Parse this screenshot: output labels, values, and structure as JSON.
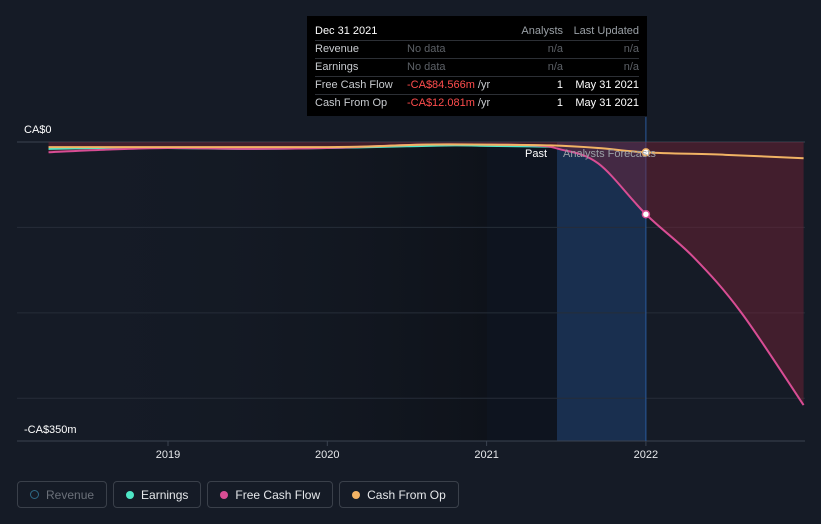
{
  "chart_data": {
    "type": "line",
    "y_axis": {
      "top_label": "CA$0",
      "bottom_label": "-CA$350m",
      "ylim": [
        -350,
        0
      ],
      "unit": "CA$m"
    },
    "x_ticks": [
      "2019",
      "2020",
      "2021",
      "2022"
    ],
    "xlim": [
      2018.25,
      2022.99
    ],
    "region_labels": {
      "past": "Past",
      "forecast": "Analysts Forecasts"
    },
    "past_end": 2021.43,
    "series": [
      {
        "name": "Earnings",
        "color": "#4ee6c6",
        "points": [
          [
            2018.25,
            -8
          ],
          [
            2018.6,
            -7
          ],
          [
            2019.0,
            -7
          ],
          [
            2019.5,
            -8
          ],
          [
            2020.0,
            -7
          ],
          [
            2020.5,
            -5
          ],
          [
            2020.8,
            -4
          ],
          [
            2021.0,
            -4.5
          ],
          [
            2021.2,
            -5
          ],
          [
            2021.4,
            -5.5
          ]
        ]
      },
      {
        "name": "Free Cash Flow",
        "color": "#d84d94",
        "points": [
          [
            2018.25,
            -12
          ],
          [
            2018.6,
            -9
          ],
          [
            2019.0,
            -7
          ],
          [
            2019.5,
            -8
          ],
          [
            2020.0,
            -7
          ],
          [
            2020.3,
            -5
          ],
          [
            2020.6,
            -3
          ],
          [
            2021.0,
            -3
          ],
          [
            2021.3,
            -4
          ],
          [
            2021.45,
            -8
          ],
          [
            2021.7,
            -25
          ],
          [
            2022.0,
            -84.566
          ],
          [
            2022.3,
            -135
          ],
          [
            2022.6,
            -200
          ],
          [
            2022.99,
            -308
          ]
        ]
      },
      {
        "name": "Cash From Op",
        "color": "#f2b364",
        "points": [
          [
            2018.25,
            -6
          ],
          [
            2018.6,
            -6
          ],
          [
            2019.0,
            -6
          ],
          [
            2019.5,
            -6
          ],
          [
            2020.0,
            -6
          ],
          [
            2020.3,
            -5
          ],
          [
            2020.6,
            -3
          ],
          [
            2021.0,
            -3
          ],
          [
            2021.4,
            -4
          ],
          [
            2021.7,
            -7
          ],
          [
            2022.0,
            -12.081
          ],
          [
            2022.5,
            -15
          ],
          [
            2022.99,
            -19
          ]
        ]
      },
      {
        "name": "Revenue",
        "color": "#2f6a86",
        "points": [],
        "active": false
      }
    ],
    "highlight": {
      "x": 2022.0
    }
  },
  "tooltip": {
    "date": "Dec 31 2021",
    "col_analysts": "Analysts",
    "col_updated": "Last Updated",
    "rows": [
      {
        "label": "Revenue",
        "value": "No data",
        "unit": "",
        "analysts": "n/a",
        "updated": "n/a"
      },
      {
        "label": "Earnings",
        "value": "No data",
        "unit": "",
        "analysts": "n/a",
        "updated": "n/a"
      },
      {
        "label": "Free Cash Flow",
        "value": "-CA$84.566m",
        "unit": " /yr",
        "analysts": "1",
        "updated": "May 31 2021"
      },
      {
        "label": "Cash From Op",
        "value": "-CA$12.081m",
        "unit": " /yr",
        "analysts": "1",
        "updated": "May 31 2021"
      }
    ]
  },
  "legend": [
    {
      "label": "Revenue",
      "color": "#2f6a86",
      "active": false
    },
    {
      "label": "Earnings",
      "color": "#4ee6c6",
      "active": true
    },
    {
      "label": "Free Cash Flow",
      "color": "#d84d94",
      "active": true
    },
    {
      "label": "Cash From Op",
      "color": "#f2b364",
      "active": true
    }
  ]
}
